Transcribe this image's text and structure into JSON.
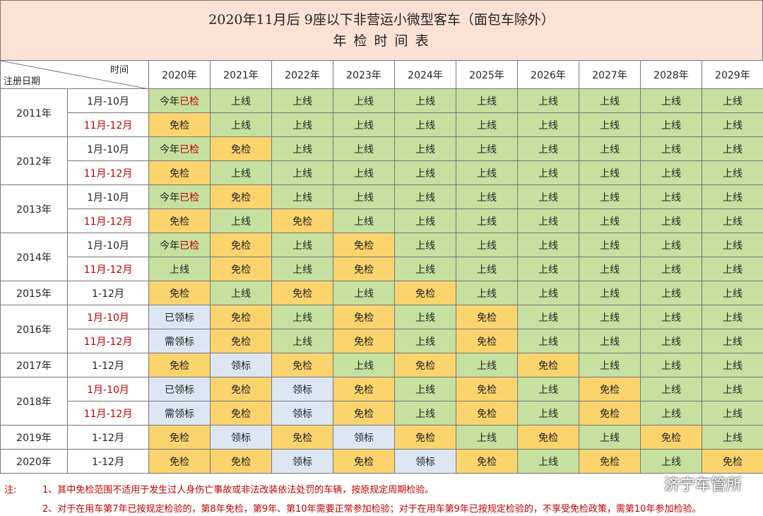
{
  "header": {
    "title": "2020年11月后 9座以下非营运小微型客车（面包车除外）",
    "subtitle": "年 检 时 间 表"
  },
  "table": {
    "corner_top": "时间",
    "corner_bottom": "注册日期",
    "years": [
      "2020年",
      "2021年",
      "2022年",
      "2023年",
      "2024年",
      "2025年",
      "2026年",
      "2027年",
      "2028年",
      "2029年"
    ],
    "status_colors": {
      "上线": "#c5e09f",
      "今年已检": "#c5e09f",
      "免检": "#fcd46e",
      "领标": "#dce7f3",
      "已领标": "#dce7f3",
      "需领标": "#dce7f3"
    },
    "highlight_color": "#c00000",
    "groups": [
      {
        "year": "2011年",
        "rows": [
          {
            "period": "1月-10月",
            "cells": [
              [
                "今年",
                "已检"
              ],
              "上线",
              "上线",
              "上线",
              "上线",
              "上线",
              "上线",
              "上线",
              "上线",
              "上线"
            ]
          },
          {
            "period": "11月-12月",
            "period_color": "#c00000",
            "cells": [
              "免检",
              "上线",
              "上线",
              "上线",
              "上线",
              "上线",
              "上线",
              "上线",
              "上线",
              "上线"
            ]
          }
        ]
      },
      {
        "year": "2012年",
        "rows": [
          {
            "period": "1月-10月",
            "cells": [
              [
                "今年",
                "已检"
              ],
              "免检",
              "上线",
              "上线",
              "上线",
              "上线",
              "上线",
              "上线",
              "上线",
              "上线"
            ]
          },
          {
            "period": "11月-12月",
            "period_color": "#c00000",
            "cells": [
              "免检",
              "上线",
              "上线",
              "上线",
              "上线",
              "上线",
              "上线",
              "上线",
              "上线",
              "上线"
            ]
          }
        ]
      },
      {
        "year": "2013年",
        "rows": [
          {
            "period": "1月-10月",
            "cells": [
              [
                "今年",
                "已检"
              ],
              "免检",
              "上线",
              "上线",
              "上线",
              "上线",
              "上线",
              "上线",
              "上线",
              "上线"
            ]
          },
          {
            "period": "11月-12月",
            "period_color": "#c00000",
            "cells": [
              "免检",
              "上线",
              "免检",
              "上线",
              "上线",
              "上线",
              "上线",
              "上线",
              "上线",
              "上线"
            ]
          }
        ]
      },
      {
        "year": "2014年",
        "rows": [
          {
            "period": "1月-10月",
            "cells": [
              [
                "今年",
                "已检"
              ],
              "免检",
              "上线",
              "免检",
              "上线",
              "上线",
              "上线",
              "上线",
              "上线",
              "上线"
            ]
          },
          {
            "period": "11月-12月",
            "period_color": "#c00000",
            "cells": [
              "上线",
              "免检",
              "上线",
              "免检",
              "上线",
              "上线",
              "上线",
              "上线",
              "上线",
              "上线"
            ]
          }
        ]
      },
      {
        "year": "2015年",
        "rows": [
          {
            "period": "1-12月",
            "cells": [
              "免检",
              "上线",
              "免检",
              "上线",
              "免检",
              "上线",
              "上线",
              "上线",
              "上线",
              "上线"
            ]
          }
        ]
      },
      {
        "year": "2016年",
        "rows": [
          {
            "period": "1月-10月",
            "period_color": "#c00000",
            "cells": [
              "已领标",
              "免检",
              "上线",
              "免检",
              "上线",
              "免检",
              "上线",
              "上线",
              "上线",
              "上线"
            ]
          },
          {
            "period": "11月-12月",
            "period_color": "#c00000",
            "cells": [
              "需领标",
              "免检",
              "上线",
              "免检",
              "上线",
              "免检",
              "上线",
              "上线",
              "上线",
              "上线"
            ]
          }
        ]
      },
      {
        "year": "2017年",
        "rows": [
          {
            "period": "1-12月",
            "cells": [
              "免检",
              "领标",
              "免检",
              "上线",
              "免检",
              "上线",
              "免检",
              "上线",
              "上线",
              "上线"
            ]
          }
        ]
      },
      {
        "year": "2018年",
        "rows": [
          {
            "period": "1月-10月",
            "period_color": "#c00000",
            "cells": [
              "已领标",
              "免检",
              "领标",
              "免检",
              "上线",
              "免检",
              "上线",
              "免检",
              "上线",
              "上线"
            ]
          },
          {
            "period": "11月-12月",
            "period_color": "#c00000",
            "cells": [
              "需领标",
              "免检",
              "领标",
              "免检",
              "上线",
              "免检",
              "上线",
              "免检",
              "上线",
              "上线"
            ]
          }
        ]
      },
      {
        "year": "2019年",
        "rows": [
          {
            "period": "1-12月",
            "cells": [
              "免检",
              "领标",
              "免检",
              "领标",
              "免检",
              "上线",
              "免检",
              "上线",
              "免检",
              "上线"
            ]
          }
        ]
      },
      {
        "year": "2020年",
        "rows": [
          {
            "period": "1-12月",
            "cells": [
              "免检",
              "免检",
              "领标",
              "免检",
              "领标",
              "免检",
              "上线",
              "免检",
              "上线",
              "免检"
            ]
          }
        ]
      }
    ]
  },
  "notes": {
    "label": "注:",
    "items": [
      "1、其中免检范围不适用于发生过人身伤亡事故或非法改装依法处罚的车辆，按原规定周期检验。",
      "2、对于在用车第7年已按规定检验的，第8年免检，第9年、第10年需要正常参加检验；对于在用车第9年已按规定检验的，不享受免检政策，需第10年参加检验。"
    ]
  },
  "watermark": "济宁车管所"
}
